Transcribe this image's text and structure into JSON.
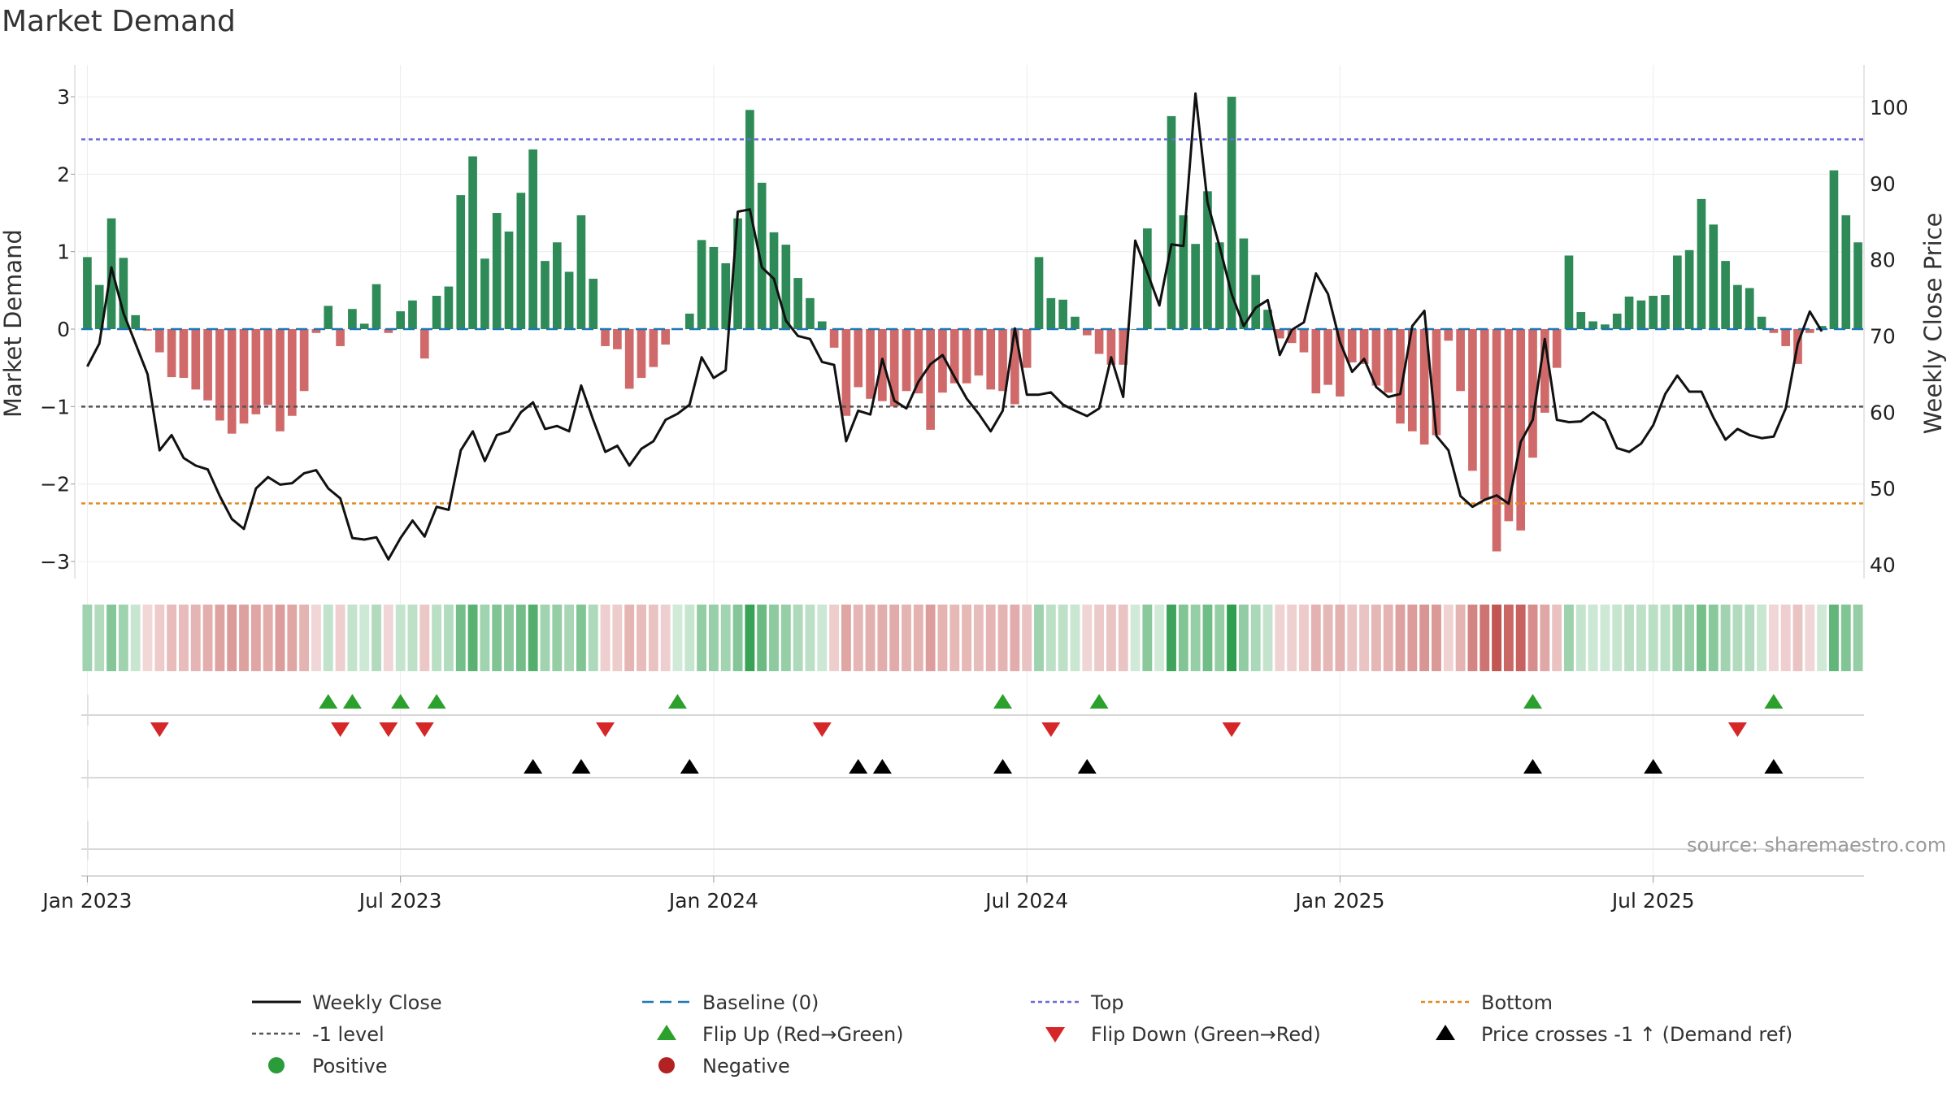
{
  "title": "Market Demand",
  "source": "source: sharemaestro.com",
  "colors": {
    "positive": "#2e8b57",
    "negative": "#d06a6a",
    "close": "#111111",
    "baseline": "#1f77b4",
    "top": "#6a6adf",
    "bottom": "#e08a1e",
    "minus_one": "#555555",
    "flip_up": "#2ca02c",
    "flip_down": "#d62728",
    "cross": "#000000"
  },
  "chart_data": {
    "type": "bar",
    "x_ticks": [
      "Jan 2023",
      "Jul 2023",
      "Jan 2024",
      "Jul 2024",
      "Jan 2025",
      "Jul 2025"
    ],
    "x_tick_week_index": [
      0,
      26,
      52,
      78,
      104,
      130
    ],
    "y_left": {
      "label": "Market Demand",
      "range": [
        -3.2,
        3.2
      ],
      "ticks": [
        -3,
        -2,
        -1,
        0,
        1,
        2,
        3
      ],
      "tick_labels": [
        "−3",
        "−2",
        "−1",
        "0",
        "1",
        "2",
        "3"
      ]
    },
    "y_right": {
      "label": "Weekly Close Price",
      "range": [
        38.4,
        103.4
      ],
      "ticks": [
        40,
        50,
        60,
        70,
        80,
        90,
        100
      ],
      "tick_labels": [
        "40",
        "50",
        "60",
        "70",
        "80",
        "90",
        "100"
      ]
    },
    "reference_lines": {
      "top": 2.45,
      "bottom": -2.25,
      "minus_one": -1,
      "baseline": 0
    },
    "series": [
      {
        "name": "Market Demand",
        "values": [
          0.93,
          0.57,
          1.43,
          0.92,
          0.18,
          -0.02,
          -0.3,
          -0.62,
          -0.63,
          -0.78,
          -0.92,
          -1.18,
          -1.35,
          -1.22,
          -1.1,
          -0.98,
          -1.32,
          -1.12,
          -0.8,
          -0.05,
          0.3,
          -0.22,
          0.26,
          0.07,
          0.58,
          -0.05,
          0.23,
          0.37,
          -0.38,
          0.43,
          0.55,
          1.73,
          2.23,
          0.91,
          1.5,
          1.26,
          1.76,
          2.32,
          0.88,
          1.12,
          0.74,
          1.47,
          0.65,
          -0.22,
          -0.26,
          -0.77,
          -0.63,
          -0.49,
          -0.2,
          0.0,
          0.2,
          1.15,
          1.06,
          0.85,
          1.43,
          2.83,
          1.89,
          1.25,
          1.09,
          0.66,
          0.4,
          0.1,
          -0.24,
          -1.12,
          -0.75,
          -0.9,
          -0.93,
          -1.0,
          -0.8,
          -0.83,
          -1.3,
          -0.82,
          -0.7,
          -0.7,
          -0.6,
          -0.78,
          -0.8,
          -0.97,
          -0.5,
          0.93,
          0.4,
          0.38,
          0.16,
          -0.08,
          -0.32,
          -0.46,
          -0.46,
          0.0,
          1.3,
          0.0,
          2.75,
          1.47,
          1.1,
          1.78,
          1.12,
          3.0,
          1.17,
          0.7,
          0.25,
          -0.12,
          -0.18,
          -0.3,
          -0.83,
          -0.72,
          -0.87,
          -0.43,
          -0.45,
          -0.73,
          -0.82,
          -1.22,
          -1.32,
          -1.49,
          -1.37,
          -0.15,
          -0.8,
          -1.83,
          -2.2,
          -2.87,
          -2.48,
          -2.6,
          -1.66,
          -1.08,
          -0.5,
          0.95,
          0.22,
          0.1,
          0.06,
          0.2,
          0.42,
          0.37,
          0.43,
          0.44,
          0.95,
          1.02,
          1.68,
          1.35,
          0.88,
          0.57,
          0.53,
          0.16,
          -0.05,
          -0.22,
          -0.45,
          -0.05,
          0.04,
          2.05,
          1.47,
          1.12
        ]
      },
      {
        "name": "Weekly Close",
        "values": [
          66,
          69,
          79,
          73,
          69,
          65,
          55,
          57,
          54,
          53,
          52.5,
          49,
          46,
          44.7,
          50,
          51.5,
          50.5,
          50.7,
          52,
          52.4,
          50,
          48.7,
          43.5,
          43.3,
          43.6,
          40.7,
          43.5,
          45.8,
          43.7,
          47.6,
          47.2,
          55,
          57.5,
          53.6,
          57,
          57.5,
          60,
          61.3,
          57.8,
          58.2,
          57.5,
          63.5,
          59,
          54.8,
          55.6,
          53,
          55.2,
          56.2,
          59,
          59.8,
          61,
          67.2,
          64.5,
          65.5,
          86.3,
          86.6,
          79,
          77.5,
          72,
          70,
          69.6,
          66.6,
          66.2,
          56.2,
          60.2,
          59.7,
          67,
          61.5,
          60.5,
          64,
          66.3,
          67.5,
          64.6,
          61.8,
          59.8,
          57.5,
          60.2,
          71,
          62.3,
          62.3,
          62.6,
          61,
          60.2,
          59.5,
          60.5,
          67.2,
          62,
          82.5,
          78.3,
          74,
          82,
          81.8,
          101.8,
          87.5,
          81.7,
          75.5,
          71.3,
          73.7,
          74.7,
          67.5,
          70.8,
          71.8,
          78.2,
          75.5,
          69.2,
          65.3,
          67,
          63.3,
          62,
          62.4,
          71.3,
          73.3,
          56.9,
          55,
          49,
          47.6,
          48.5,
          49.1,
          48,
          56.1,
          59,
          69.6,
          59,
          58.7,
          58.8,
          60,
          58.9,
          55.3,
          54.8,
          55.9,
          58.3,
          62.4,
          64.8,
          62.7,
          62.7,
          59.3,
          56.4,
          57.8,
          57,
          56.6,
          56.8,
          60.5,
          69,
          73.2,
          70.6
        ]
      }
    ],
    "legend": [
      "Weekly Close",
      "Baseline (0)",
      "Top",
      "Bottom",
      "-1 level",
      "Flip Up (Red→Green)",
      "Flip Down (Green→Red)",
      "Price crosses -1 ↑ (Demand ref)",
      "Positive",
      "Negative"
    ],
    "flip_up_weeks": [
      20,
      22,
      26,
      29,
      49,
      76,
      84,
      120,
      140
    ],
    "flip_down_weeks": [
      6,
      21,
      25,
      28,
      43,
      61,
      80,
      95,
      137
    ],
    "price_cross_weeks": [
      37,
      41,
      50,
      64,
      66,
      76,
      83,
      120,
      130,
      140
    ]
  }
}
